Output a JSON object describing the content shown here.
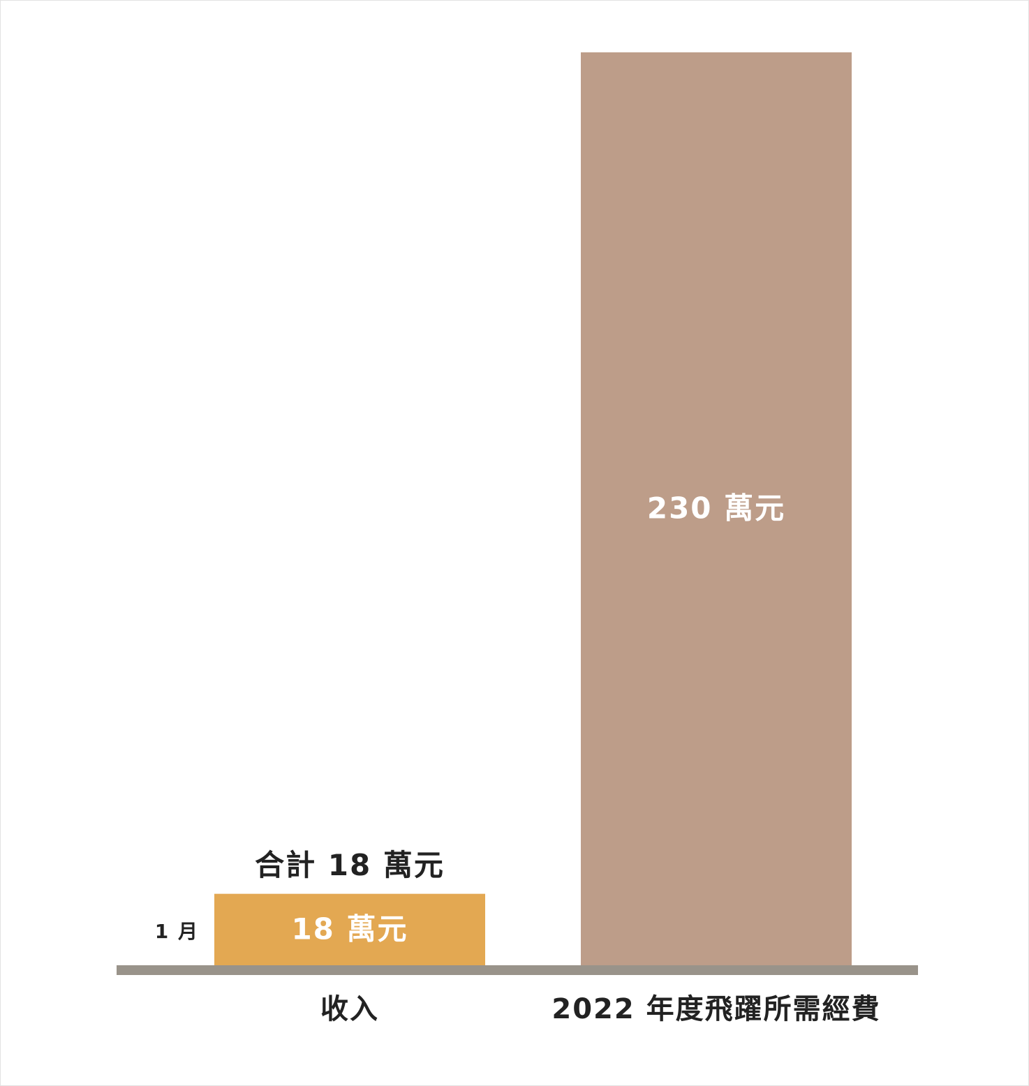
{
  "chart_data": {
    "type": "bar",
    "categories": [
      "收入",
      "2022 年度飛躍所需經費"
    ],
    "values": [
      18,
      230
    ],
    "value_labels": [
      "18 萬元",
      "230 萬元"
    ],
    "colors": [
      "#e3a852",
      "#bd9d89"
    ],
    "side_labels": [
      "1 月",
      null
    ],
    "total_labels": [
      "合計 18 萬元",
      null
    ]
  }
}
